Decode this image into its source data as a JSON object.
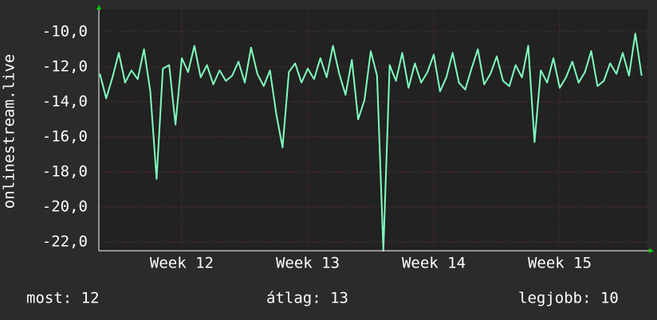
{
  "chart_data": {
    "type": "line",
    "y_label": "onlinestream.live",
    "x": [
      11.35,
      11.4,
      11.45,
      11.5,
      11.55,
      11.6,
      11.65,
      11.7,
      11.75,
      11.8,
      11.85,
      11.9,
      11.95,
      12.0,
      12.05,
      12.1,
      12.15,
      12.2,
      12.25,
      12.3,
      12.35,
      12.4,
      12.45,
      12.5,
      12.55,
      12.6,
      12.65,
      12.7,
      12.75,
      12.8,
      12.85,
      12.9,
      12.95,
      13.0,
      13.05,
      13.1,
      13.15,
      13.2,
      13.25,
      13.3,
      13.35,
      13.4,
      13.45,
      13.5,
      13.55,
      13.6,
      13.65,
      13.7,
      13.75,
      13.8,
      13.85,
      13.9,
      13.95,
      14.0,
      14.05,
      14.1,
      14.15,
      14.2,
      14.25,
      14.3,
      14.35,
      14.4,
      14.45,
      14.5,
      14.55,
      14.6,
      14.65,
      14.7,
      14.75,
      14.8,
      14.85,
      14.9,
      14.95,
      15.0,
      15.05,
      15.1,
      15.15,
      15.2,
      15.25,
      15.3,
      15.35,
      15.4,
      15.45,
      15.5,
      15.55,
      15.6,
      15.65
    ],
    "series": [
      {
        "color": "#80ffbf",
        "values": [
          -12.4,
          -13.8,
          -12.6,
          -11.2,
          -12.9,
          -12.2,
          -12.7,
          -11,
          -13.4,
          -18.4,
          -12.1,
          -11.9,
          -15.3,
          -11.5,
          -12.3,
          -10.8,
          -12.6,
          -11.9,
          -13,
          -12.2,
          -12.8,
          -12.5,
          -11.7,
          -12.9,
          -10.9,
          -12.4,
          -13.1,
          -12.2,
          -14.7,
          -16.6,
          -12.3,
          -11.8,
          -12.9,
          -12.1,
          -12.7,
          -11.5,
          -12.6,
          -10.8,
          -12.4,
          -13.6,
          -11.6,
          -15,
          -13.9,
          -11.1,
          -12.5,
          -22.5,
          -11.9,
          -12.8,
          -11.2,
          -13.2,
          -11.8,
          -12.9,
          -12.3,
          -11.3,
          -13.4,
          -12.6,
          -11.2,
          -12.9,
          -13.3,
          -12.1,
          -11,
          -13,
          -12.4,
          -11.4,
          -12.8,
          -13.1,
          -11.9,
          -12.6,
          -10.8,
          -16.3,
          -12.2,
          -12.9,
          -11.5,
          -13.2,
          -12.6,
          -11.7,
          -12.9,
          -12.3,
          -11.1,
          -13.1,
          -12.8,
          -11.8,
          -12.4,
          -11.2,
          -12.5,
          -10.1,
          -12.5
        ]
      }
    ],
    "xlim": [
      11.342,
      15.696
    ],
    "xticks": [
      {
        "value": 12,
        "label": "Week 12"
      },
      {
        "value": 13,
        "label": "Week 13"
      },
      {
        "value": 14,
        "label": "Week 14"
      },
      {
        "value": 15,
        "label": "Week 15"
      }
    ],
    "ylim": [
      -22.5,
      -8.73
    ],
    "yticks": [
      {
        "value": -10,
        "label": "-10,0"
      },
      {
        "value": -12,
        "label": "-12,0"
      },
      {
        "value": -14,
        "label": "-14,0"
      },
      {
        "value": -16,
        "label": "-16,0"
      },
      {
        "value": -18,
        "label": "-18,0"
      },
      {
        "value": -20,
        "label": "-20,0"
      },
      {
        "value": -22,
        "label": "-22,0"
      }
    ],
    "grid": true,
    "footer": [
      "most: 12",
      "átlag: 13",
      "legjobb: 10"
    ]
  }
}
